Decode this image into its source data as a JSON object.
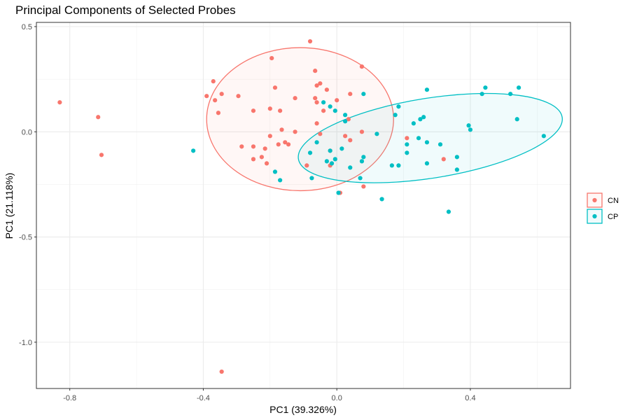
{
  "chart_data": {
    "type": "scatter",
    "title": "Principal Components of Selected Probes",
    "xlabel": "PC1 (39.326%)",
    "ylabel": "PC1 (21.118%)",
    "xlim": [
      -0.9,
      0.7
    ],
    "ylim": [
      -1.22,
      0.52
    ],
    "x_ticks": [
      -0.8,
      -0.4,
      0.0,
      0.4
    ],
    "x_tick_labels": [
      "-0.8",
      "-0.4",
      "0.0",
      "0.4"
    ],
    "y_ticks": [
      -1.0,
      -0.5,
      0.0,
      0.5
    ],
    "y_tick_labels": [
      "-1.0",
      "-0.5",
      "0.0",
      "0.5"
    ],
    "grid": true,
    "legend_position": "right",
    "series": [
      {
        "name": "CN",
        "color": "#F8766D",
        "ellipse": {
          "center": [
            -0.11,
            0.06
          ],
          "rx": 0.28,
          "ry": 0.34,
          "angle_deg": 0
        },
        "points": [
          [
            -0.83,
            0.14
          ],
          [
            -0.715,
            0.07
          ],
          [
            -0.705,
            -0.11
          ],
          [
            -0.39,
            0.17
          ],
          [
            -0.37,
            0.24
          ],
          [
            -0.365,
            0.15
          ],
          [
            -0.355,
            0.09
          ],
          [
            -0.345,
            0.18
          ],
          [
            -0.295,
            0.17
          ],
          [
            -0.285,
            -0.07
          ],
          [
            -0.25,
            0.1
          ],
          [
            -0.25,
            -0.07
          ],
          [
            -0.25,
            -0.13
          ],
          [
            -0.225,
            -0.12
          ],
          [
            -0.215,
            -0.08
          ],
          [
            -0.21,
            -0.15
          ],
          [
            -0.2,
            0.11
          ],
          [
            -0.2,
            -0.02
          ],
          [
            -0.195,
            0.35
          ],
          [
            -0.185,
            0.21
          ],
          [
            -0.175,
            -0.06
          ],
          [
            -0.17,
            0.1
          ],
          [
            -0.165,
            0.01
          ],
          [
            -0.155,
            -0.05
          ],
          [
            -0.145,
            -0.06
          ],
          [
            -0.125,
            0.16
          ],
          [
            -0.125,
            0.0
          ],
          [
            -0.09,
            -0.16
          ],
          [
            -0.08,
            0.43
          ],
          [
            -0.065,
            0.29
          ],
          [
            -0.065,
            0.16
          ],
          [
            -0.06,
            0.22
          ],
          [
            -0.06,
            0.14
          ],
          [
            -0.06,
            0.04
          ],
          [
            -0.05,
            0.23
          ],
          [
            -0.05,
            -0.01
          ],
          [
            -0.04,
            0.1
          ],
          [
            -0.03,
            0.2
          ],
          [
            -0.02,
            -0.09
          ],
          [
            -0.02,
            -0.16
          ],
          [
            0.0,
            0.15
          ],
          [
            0.01,
            -0.29
          ],
          [
            0.025,
            -0.02
          ],
          [
            0.035,
            0.06
          ],
          [
            0.04,
            0.18
          ],
          [
            0.04,
            -0.04
          ],
          [
            0.075,
            0.31
          ],
          [
            0.075,
            0.0
          ],
          [
            0.08,
            -0.26
          ],
          [
            0.21,
            -0.03
          ],
          [
            0.32,
            -0.13
          ],
          [
            -0.345,
            -1.14
          ]
        ]
      },
      {
        "name": "CP",
        "color": "#00BFC4",
        "ellipse": {
          "center": [
            0.28,
            -0.03
          ],
          "rx": 0.4,
          "ry": 0.19,
          "angle_deg": 9
        },
        "points": [
          [
            -0.43,
            -0.09
          ],
          [
            -0.185,
            -0.19
          ],
          [
            -0.17,
            -0.23
          ],
          [
            -0.08,
            -0.1
          ],
          [
            -0.075,
            -0.22
          ],
          [
            -0.06,
            -0.05
          ],
          [
            -0.04,
            0.14
          ],
          [
            -0.03,
            -0.14
          ],
          [
            -0.02,
            -0.09
          ],
          [
            -0.02,
            0.12
          ],
          [
            -0.015,
            -0.15
          ],
          [
            -0.005,
            0.1
          ],
          [
            -0.005,
            -0.13
          ],
          [
            0.005,
            -0.29
          ],
          [
            0.015,
            -0.08
          ],
          [
            0.025,
            0.08
          ],
          [
            0.025,
            0.05
          ],
          [
            0.04,
            -0.17
          ],
          [
            0.07,
            -0.22
          ],
          [
            0.075,
            -0.14
          ],
          [
            0.08,
            -0.12
          ],
          [
            0.08,
            0.18
          ],
          [
            0.12,
            -0.01
          ],
          [
            0.135,
            -0.32
          ],
          [
            0.165,
            -0.16
          ],
          [
            0.175,
            0.08
          ],
          [
            0.185,
            -0.16
          ],
          [
            0.185,
            0.12
          ],
          [
            0.21,
            -0.06
          ],
          [
            0.21,
            -0.1
          ],
          [
            0.23,
            0.04
          ],
          [
            0.245,
            -0.03
          ],
          [
            0.25,
            0.06
          ],
          [
            0.26,
            0.07
          ],
          [
            0.27,
            0.2
          ],
          [
            0.27,
            -0.05
          ],
          [
            0.27,
            -0.15
          ],
          [
            0.31,
            -0.06
          ],
          [
            0.335,
            -0.38
          ],
          [
            0.36,
            -0.12
          ],
          [
            0.36,
            -0.18
          ],
          [
            0.395,
            0.03
          ],
          [
            0.4,
            0.01
          ],
          [
            0.435,
            0.18
          ],
          [
            0.445,
            0.21
          ],
          [
            0.52,
            0.18
          ],
          [
            0.54,
            0.06
          ],
          [
            0.545,
            0.21
          ],
          [
            0.62,
            -0.02
          ]
        ]
      }
    ]
  }
}
